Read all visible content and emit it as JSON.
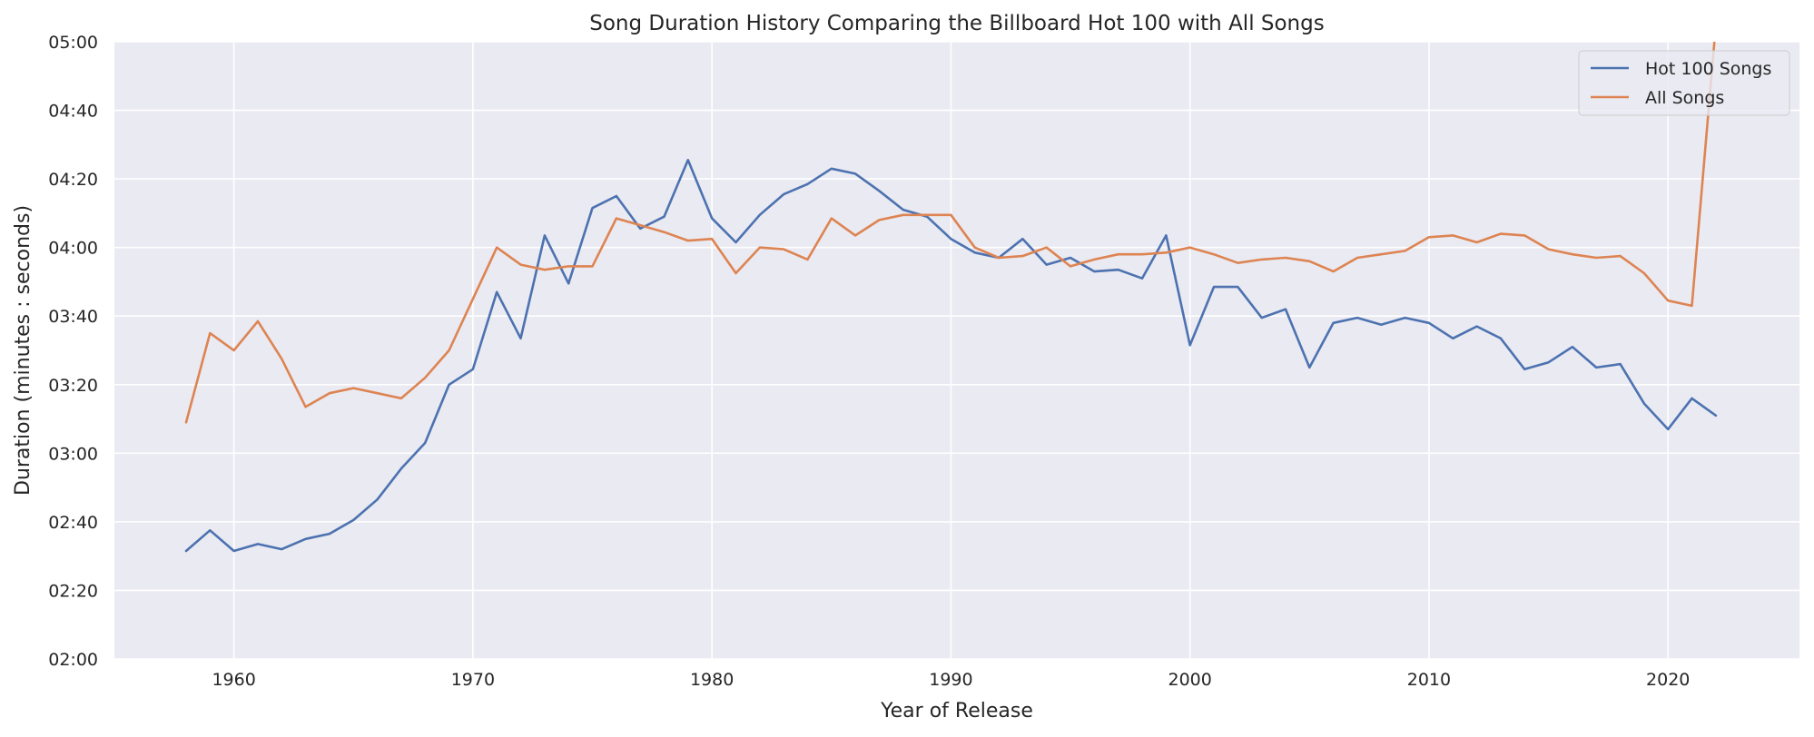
{
  "chart_data": {
    "type": "line",
    "title": "Song Duration History Comparing the Billboard Hot 100 with All Songs",
    "xlabel": "Year of Release",
    "ylabel": "Duration (minutes : seconds)",
    "xlim": [
      1955,
      2025.5
    ],
    "ylim": [
      120,
      300
    ],
    "x_ticks": [
      1960,
      1970,
      1980,
      1990,
      2000,
      2010,
      2020
    ],
    "y_ticks": [
      {
        "value": 120,
        "label": "02:00"
      },
      {
        "value": 140,
        "label": "02:20"
      },
      {
        "value": 160,
        "label": "02:40"
      },
      {
        "value": 180,
        "label": "03:00"
      },
      {
        "value": 200,
        "label": "03:20"
      },
      {
        "value": 220,
        "label": "03:40"
      },
      {
        "value": 240,
        "label": "04:00"
      },
      {
        "value": 260,
        "label": "04:20"
      },
      {
        "value": 280,
        "label": "04:40"
      },
      {
        "value": 300,
        "label": "05:00"
      }
    ],
    "grid": true,
    "legend_position": "top-right",
    "x": [
      1958,
      1959,
      1960,
      1961,
      1962,
      1963,
      1964,
      1965,
      1966,
      1967,
      1968,
      1969,
      1970,
      1971,
      1972,
      1973,
      1974,
      1975,
      1976,
      1977,
      1978,
      1979,
      1980,
      1981,
      1982,
      1983,
      1984,
      1985,
      1986,
      1987,
      1988,
      1989,
      1990,
      1991,
      1992,
      1993,
      1994,
      1995,
      1996,
      1997,
      1998,
      1999,
      2000,
      2001,
      2002,
      2003,
      2004,
      2005,
      2006,
      2007,
      2008,
      2009,
      2010,
      2011,
      2012,
      2013,
      2014,
      2015,
      2016,
      2017,
      2018,
      2019,
      2020,
      2021,
      2022
    ],
    "series": [
      {
        "name": "Hot 100 Songs",
        "color": "#4c72b0",
        "values": [
          151.5,
          157.5,
          151.5,
          153.5,
          152,
          155,
          156.5,
          160.5,
          166.5,
          175.5,
          183,
          200,
          204.5,
          227,
          213.5,
          243.5,
          229.5,
          251.5,
          255,
          245.5,
          249,
          265.5,
          248.5,
          241.5,
          249.5,
          255.5,
          258.5,
          263,
          261.5,
          256.5,
          251,
          249,
          242.5,
          238.5,
          237,
          242.5,
          235,
          237,
          233,
          233.5,
          231,
          243.5,
          211.5,
          228.5,
          228.5,
          219.5,
          222,
          205,
          218,
          219.5,
          217.5,
          219.5,
          218,
          213.5,
          217,
          213.5,
          204.5,
          206.5,
          211,
          205,
          206,
          194.5,
          187,
          196,
          191
        ]
      },
      {
        "name": "All Songs",
        "color": "#dd8452",
        "values": [
          189,
          215,
          210,
          218.5,
          207.5,
          193.5,
          197.5,
          199,
          197.5,
          196,
          202,
          210,
          225,
          240,
          235,
          233.5,
          234.5,
          234.5,
          248.5,
          246.5,
          244.5,
          242,
          242.5,
          232.5,
          240,
          239.5,
          236.5,
          248.5,
          243.5,
          248,
          249.5,
          249.5,
          249.5,
          240,
          237,
          237.5,
          240,
          234.5,
          236.5,
          238,
          238,
          238.5,
          240,
          238,
          235.5,
          236.5,
          237,
          236,
          233,
          237,
          238,
          239,
          243,
          243.5,
          241.5,
          244,
          243.5,
          239.5,
          238,
          237,
          237.5,
          232.5,
          224.5,
          223,
          305
        ]
      }
    ]
  }
}
